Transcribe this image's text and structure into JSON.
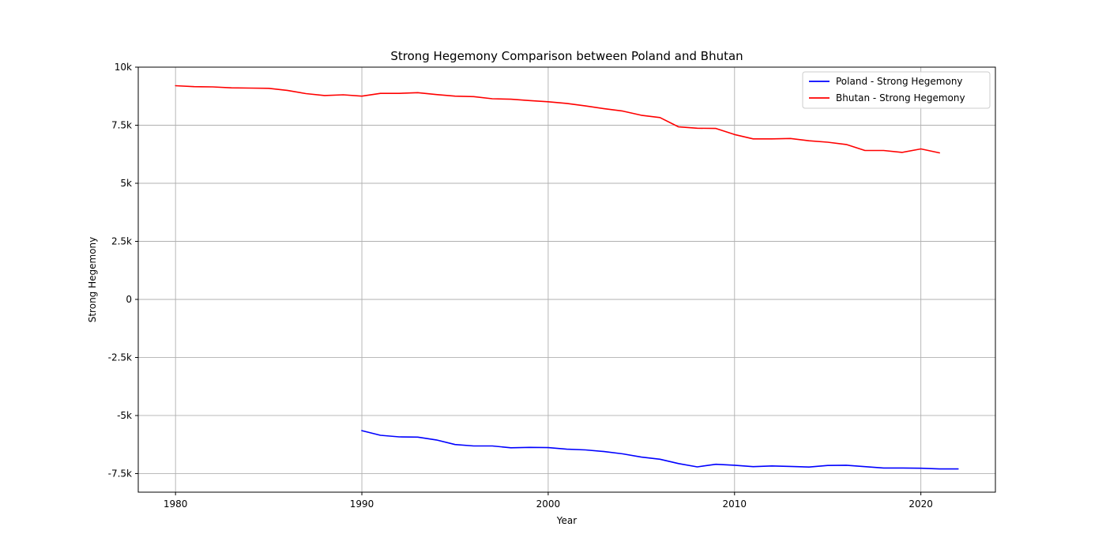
{
  "chart_data": {
    "type": "line",
    "title": "Strong Hegemony Comparison between Poland and Bhutan",
    "xlabel": "Year",
    "ylabel": "Strong Hegemony",
    "xlim": [
      1978,
      2024
    ],
    "ylim": [
      -8300,
      10000
    ],
    "x_ticks": [
      1980,
      1990,
      2000,
      2010,
      2020
    ],
    "x_tick_labels": [
      "1980",
      "1990",
      "2000",
      "2010",
      "2020"
    ],
    "y_ticks": [
      -7500,
      -5000,
      -2500,
      0,
      2500,
      5000,
      7500,
      10000
    ],
    "y_tick_labels": [
      "-7.5k",
      "-5k",
      "-2.5k",
      "0",
      "2.5k",
      "5k",
      "7.5k",
      "10k"
    ],
    "grid": true,
    "legend_position": "top-right",
    "series": [
      {
        "name": "Poland - Strong Hegemony",
        "color": "#0000ff",
        "x": [
          1990,
          1991,
          1992,
          1993,
          1994,
          1995,
          1996,
          1997,
          1998,
          1999,
          2000,
          2001,
          2002,
          2003,
          2004,
          2005,
          2006,
          2007,
          2008,
          2009,
          2010,
          2011,
          2012,
          2013,
          2014,
          2015,
          2016,
          2017,
          2018,
          2019,
          2020,
          2021,
          2022
        ],
        "y": [
          -5650,
          -5850,
          -5920,
          -5930,
          -6050,
          -6250,
          -6310,
          -6310,
          -6390,
          -6370,
          -6380,
          -6450,
          -6480,
          -6550,
          -6650,
          -6790,
          -6880,
          -7070,
          -7210,
          -7100,
          -7140,
          -7200,
          -7170,
          -7190,
          -7220,
          -7150,
          -7140,
          -7200,
          -7260,
          -7260,
          -7270,
          -7300,
          -7300
        ]
      },
      {
        "name": "Bhutan - Strong Hegemony",
        "color": "#ff0000",
        "x": [
          1980,
          1981,
          1982,
          1983,
          1984,
          1985,
          1986,
          1987,
          1988,
          1989,
          1990,
          1991,
          1992,
          1993,
          1994,
          1995,
          1996,
          1997,
          1998,
          1999,
          2000,
          2001,
          2002,
          2003,
          2004,
          2005,
          2006,
          2007,
          2008,
          2009,
          2010,
          2011,
          2012,
          2013,
          2014,
          2015,
          2016,
          2017,
          2018,
          2019,
          2020,
          2021
        ],
        "y": [
          9200,
          9160,
          9150,
          9110,
          9100,
          9090,
          9000,
          8860,
          8780,
          8810,
          8750,
          8870,
          8870,
          8900,
          8820,
          8750,
          8730,
          8640,
          8620,
          8560,
          8510,
          8440,
          8330,
          8210,
          8110,
          7930,
          7830,
          7430,
          7370,
          7360,
          7100,
          6910,
          6910,
          6930,
          6830,
          6770,
          6670,
          6410,
          6410,
          6330,
          6480,
          6310
        ]
      }
    ]
  }
}
